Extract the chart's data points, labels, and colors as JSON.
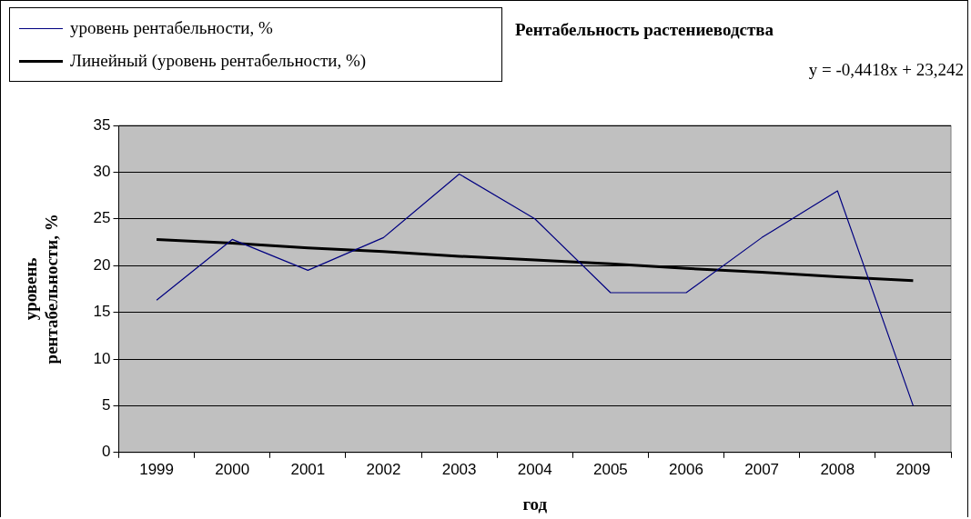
{
  "chart_data": {
    "type": "line",
    "title": "Рентабельность растениеводства",
    "xlabel": "год",
    "ylabel": "уровень рентабельности, %",
    "categories": [
      "1999",
      "2000",
      "2001",
      "2002",
      "2003",
      "2004",
      "2005",
      "2006",
      "2007",
      "2008",
      "2009"
    ],
    "series": [
      {
        "name": "уровень рентабельности, %",
        "color": "#000080",
        "values": [
          16.3,
          22.8,
          19.5,
          23.0,
          29.8,
          25.0,
          17.1,
          17.1,
          23.0,
          28.0,
          5.0
        ]
      },
      {
        "name": "Линейный (уровень рентабельности, %)",
        "color": "#000000",
        "type": "line",
        "values": [
          22.8,
          22.4,
          21.9,
          21.5,
          21.0,
          20.6,
          20.2,
          19.7,
          19.3,
          18.8,
          18.4
        ]
      }
    ],
    "annotations": [
      "y = -0,4418x + 23,242"
    ],
    "ylim": [
      0,
      35
    ],
    "yticks": [
      0,
      5,
      10,
      15,
      20,
      25,
      30,
      35
    ],
    "grid": "y",
    "legend": "top left",
    "marker": "none",
    "line_style": "solid"
  }
}
